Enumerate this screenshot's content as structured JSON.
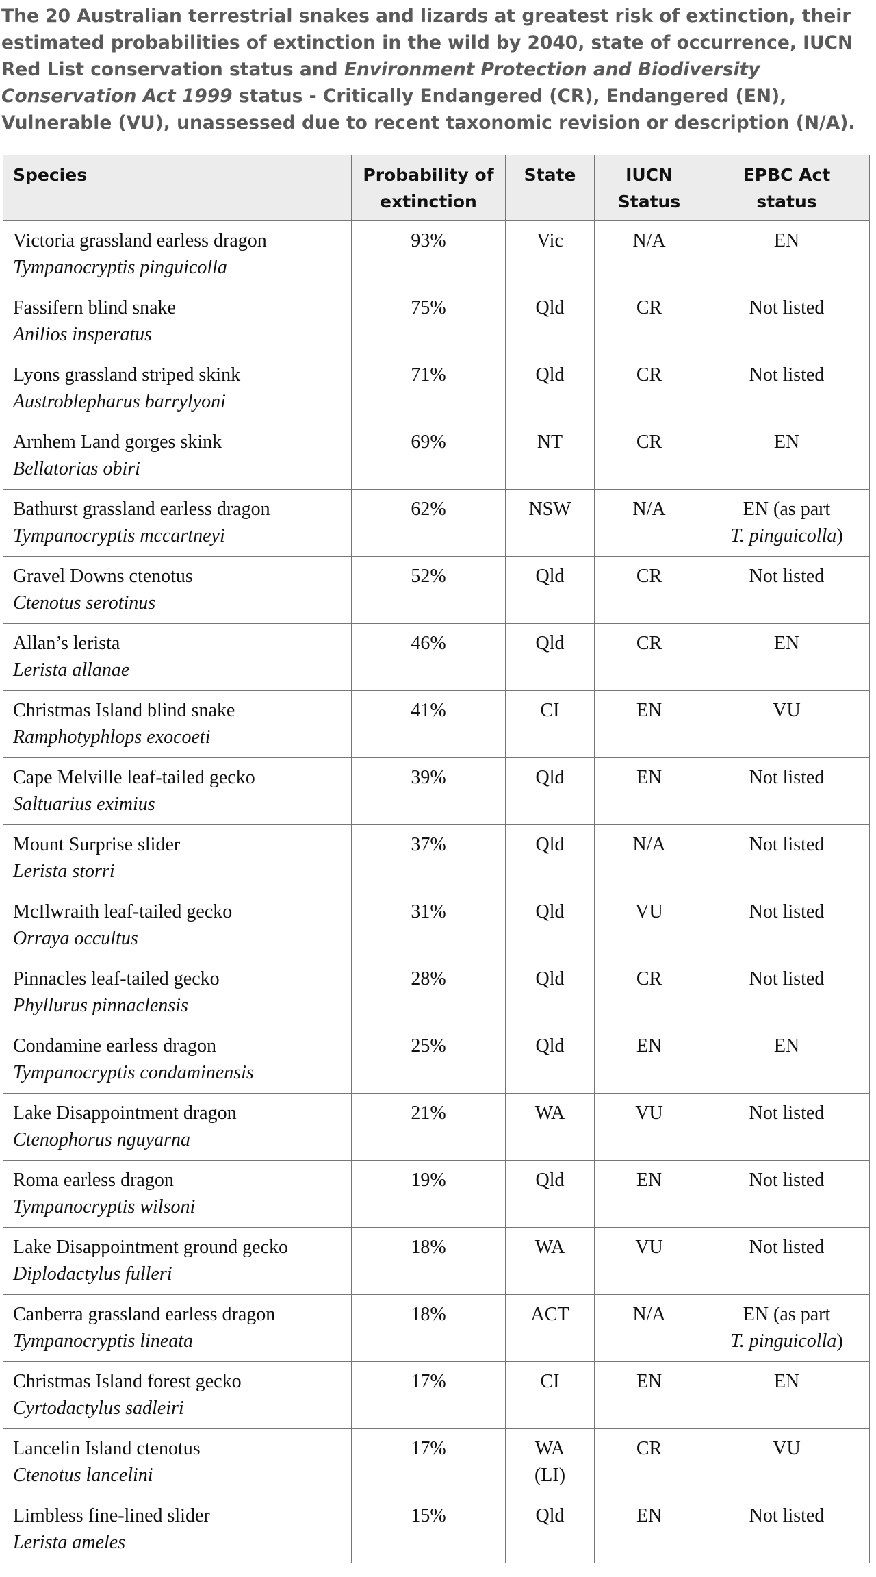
{
  "caption": {
    "text_before": "The 20 Australian terrestrial snakes and lizards at greatest risk of extinction, their estimated probabilities of extinction in the wild by 2040, state of occurrence, IUCN Red List conservation status and ",
    "act_name": "Environment Protection and Biodiversity Conservation Act 1999",
    "text_after": " status - Critically Endangered (CR), Endangered (EN), Vulnerable (VU), unassessed due to recent taxonomic revision or description (N/A)."
  },
  "table": {
    "headers": [
      [
        "Species"
      ],
      [
        "Probability of",
        "extinction"
      ],
      [
        "State"
      ],
      [
        "IUCN",
        "Status"
      ],
      [
        "EPBC Act",
        "status"
      ]
    ],
    "rows": [
      {
        "common": "Victoria grassland earless dragon",
        "scientific": "Tympanocryptis pinguicolla",
        "probability": "93%",
        "state": "Vic",
        "iucn": "N/A",
        "epbc": "EN"
      },
      {
        "common": "Fassifern blind snake",
        "scientific": "Anilios insperatus",
        "probability": "75%",
        "state": "Qld",
        "iucn": "CR",
        "epbc": "Not listed"
      },
      {
        "common": "Lyons grassland striped skink",
        "scientific": "Austroblepharus barrylyoni",
        "probability": "71%",
        "state": "Qld",
        "iucn": "CR",
        "epbc": "Not listed"
      },
      {
        "common": "Arnhem Land gorges skink",
        "scientific": "Bellatorias obiri",
        "probability": "69%",
        "state": "NT",
        "iucn": "CR",
        "epbc": "EN"
      },
      {
        "common": "Bathurst grassland earless dragon",
        "scientific": "Tympanocryptis mccartneyi",
        "probability": "62%",
        "state": "NSW",
        "iucn": "N/A",
        "epbc": "EN (as part",
        "epbc_taxon": "T. pinguicolla",
        "epbc_close": ")"
      },
      {
        "common": "Gravel Downs ctenotus",
        "scientific": "Ctenotus serotinus",
        "probability": "52%",
        "state": "Qld",
        "iucn": "CR",
        "epbc": "Not listed"
      },
      {
        "common": "Allan’s lerista",
        "scientific": "Lerista allanae",
        "probability": "46%",
        "state": "Qld",
        "iucn": "CR",
        "epbc": "EN"
      },
      {
        "common": "Christmas Island blind snake",
        "scientific": "Ramphotyphlops exocoeti",
        "probability": "41%",
        "state": "CI",
        "iucn": "EN",
        "epbc": "VU"
      },
      {
        "common": "Cape Melville leaf-tailed gecko",
        "scientific": "Saltuarius eximius",
        "probability": "39%",
        "state": "Qld",
        "iucn": "EN",
        "epbc": "Not listed"
      },
      {
        "common": "Mount Surprise slider",
        "scientific": "Lerista storri",
        "probability": "37%",
        "state": "Qld",
        "iucn": "N/A",
        "epbc": "Not listed"
      },
      {
        "common": "McIlwraith leaf-tailed gecko",
        "scientific": "Orraya occultus",
        "probability": "31%",
        "state": "Qld",
        "iucn": "VU",
        "epbc": "Not listed"
      },
      {
        "common": "Pinnacles leaf-tailed gecko",
        "scientific": "Phyllurus pinnaclensis",
        "probability": "28%",
        "state": "Qld",
        "iucn": "CR",
        "epbc": "Not listed"
      },
      {
        "common": "Condamine earless dragon",
        "scientific": "Tympanocryptis condaminensis",
        "probability": "25%",
        "state": "Qld",
        "iucn": "EN",
        "epbc": "EN"
      },
      {
        "common": "Lake Disappointment dragon",
        "scientific": "Ctenophorus nguyarna",
        "probability": "21%",
        "state": "WA",
        "iucn": "VU",
        "epbc": "Not listed"
      },
      {
        "common": "Roma earless dragon",
        "scientific": "Tympanocryptis wilsoni",
        "probability": "19%",
        "state": "Qld",
        "iucn": "EN",
        "epbc": "Not listed"
      },
      {
        "common": "Lake Disappointment ground gecko",
        "scientific": "Diplodactylus fulleri",
        "probability": "18%",
        "state": "WA",
        "iucn": "VU",
        "epbc": "Not listed"
      },
      {
        "common": "Canberra grassland earless dragon",
        "scientific": "Tympanocryptis lineata",
        "probability": "18%",
        "state": "ACT",
        "iucn": "N/A",
        "epbc": "EN (as part",
        "epbc_taxon": "T. pinguicolla",
        "epbc_close": ")"
      },
      {
        "common": "Christmas Island forest gecko",
        "scientific": "Cyrtodactylus sadleiri",
        "probability": "17%",
        "state": "CI",
        "iucn": "EN",
        "epbc": "EN"
      },
      {
        "common": "Lancelin Island ctenotus",
        "scientific": "Ctenotus lancelini",
        "probability": "17%",
        "state": "WA (LI)",
        "iucn": "CR",
        "epbc": "VU"
      },
      {
        "common": "Limbless fine-lined slider",
        "scientific": "Lerista ameles",
        "probability": "15%",
        "state": "Qld",
        "iucn": "EN",
        "epbc": "Not listed"
      }
    ]
  }
}
